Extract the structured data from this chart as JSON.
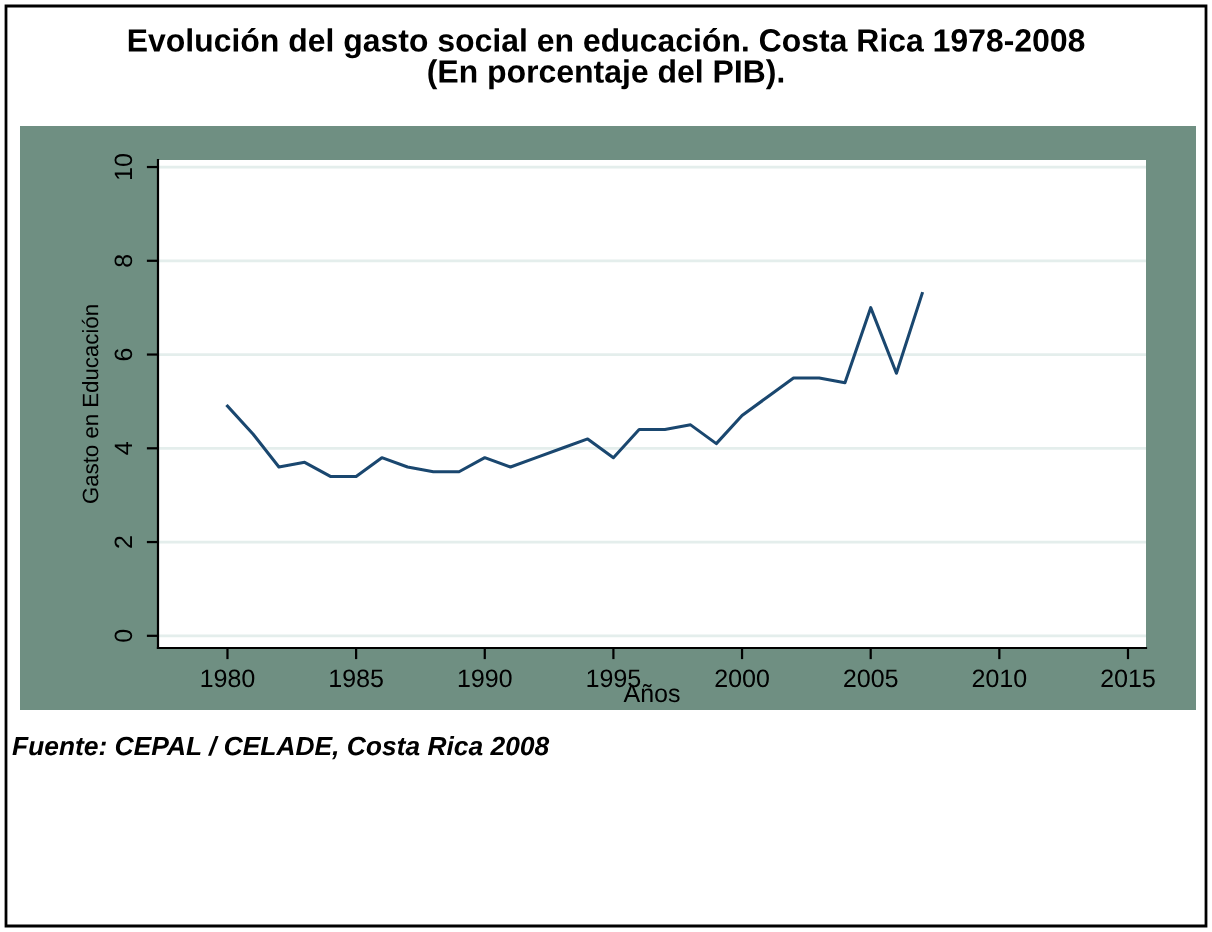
{
  "chart_data": {
    "type": "line",
    "title": "Evolución del gasto social en educación. Costa Rica 1978-2008\n(En porcentaje del PIB).",
    "xlabel": "Años",
    "ylabel": "Gasto en Educación",
    "x": [
      1980,
      1981,
      1982,
      1983,
      1984,
      1985,
      1986,
      1987,
      1988,
      1989,
      1990,
      1991,
      1992,
      1993,
      1994,
      1995,
      1996,
      1997,
      1998,
      1999,
      2000,
      2001,
      2002,
      2003,
      2004,
      2005,
      2006,
      2007
    ],
    "series": [
      {
        "color": "#1a476f",
        "values": [
          4.9,
          4.3,
          3.6,
          3.7,
          3.4,
          3.4,
          3.8,
          3.6,
          3.5,
          3.5,
          3.8,
          3.6,
          3.8,
          4.0,
          4.2,
          3.8,
          4.4,
          4.4,
          4.5,
          4.1,
          4.7,
          5.1,
          5.5,
          5.5,
          5.4,
          7.0,
          5.6,
          7.3
        ]
      }
    ],
    "xlim": [
      1977.3,
      2015.7
    ],
    "ylim": [
      -0.26,
      10.15
    ],
    "xticks": [
      1980,
      1985,
      1990,
      1995,
      2000,
      2005,
      2010,
      2015
    ],
    "yticks": [
      0,
      2,
      4,
      6,
      8,
      10
    ],
    "grid": "y",
    "legend": false,
    "marker": "none",
    "line_style": "solid",
    "annotations": [
      "Fuente: CEPAL / CELADE, Costa Rica 2008"
    ]
  }
}
